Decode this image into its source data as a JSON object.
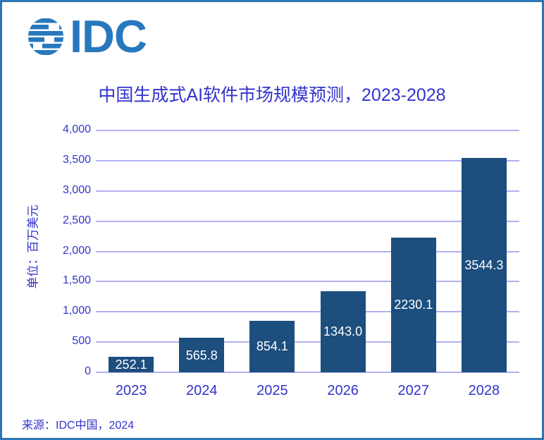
{
  "logo": {
    "text": "IDC",
    "color": "#2878BE",
    "globe_icon": "striped-globe"
  },
  "chart_data": {
    "type": "bar",
    "title": "中国生成式AI软件市场规模预测，2023-2028",
    "categories": [
      "2023",
      "2024",
      "2025",
      "2026",
      "2027",
      "2028"
    ],
    "values": [
      252.1,
      565.8,
      854.1,
      1343.0,
      2230.1,
      3544.3
    ],
    "value_labels": [
      "252.1",
      "565.8",
      "854.1",
      "1343.0",
      "2230.1",
      "3544.3"
    ],
    "ylabel": "单位：百万美元",
    "xlabel": "",
    "ylim": [
      0,
      4000
    ],
    "yticks": [
      0,
      500,
      1000,
      1500,
      2000,
      2500,
      3000,
      3500,
      4000
    ],
    "ytick_labels": [
      "0",
      "500",
      "1,000",
      "1,500",
      "2,000",
      "2,500",
      "3,000",
      "3,500",
      "4,000"
    ],
    "grid": true,
    "legend": "none",
    "bar_color": "#1C4E7E",
    "grid_color": "#B1B1F0",
    "text_color": "#3333CC",
    "value_label_color": "#FFFFFF"
  },
  "source": {
    "label": "来源：IDC中国，2024"
  },
  "frame": {
    "border_color": "#2E75B6",
    "background": "#FFFFFF"
  }
}
